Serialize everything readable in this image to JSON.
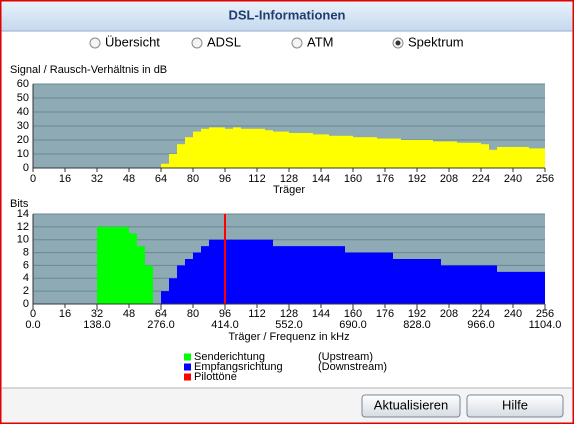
{
  "title": "DSL-Informationen",
  "radio_options": [
    {
      "label": "Übersicht",
      "selected": false
    },
    {
      "label": "ADSL",
      "selected": false
    },
    {
      "label": "ATM",
      "selected": false
    },
    {
      "label": "Spektrum",
      "selected": true
    }
  ],
  "chart_data": [
    {
      "type": "bar",
      "title": "Signal / Rausch-Verhältnis in dB",
      "x_label": "Träger",
      "xlim": [
        0,
        256
      ],
      "xticks": [
        0,
        16,
        32,
        48,
        64,
        80,
        96,
        112,
        128,
        144,
        160,
        176,
        192,
        208,
        224,
        240,
        256
      ],
      "ylim": [
        0,
        60
      ],
      "yticks": [
        0,
        10,
        20,
        30,
        40,
        50,
        60
      ],
      "grid": true,
      "series": [
        {
          "color": "#ffff00",
          "x": [
            64,
            68,
            72,
            76,
            80,
            84,
            88,
            92,
            96,
            100,
            104,
            108,
            112,
            116,
            120,
            124,
            128,
            132,
            136,
            140,
            144,
            148,
            152,
            156,
            160,
            164,
            168,
            172,
            176,
            180,
            184,
            188,
            192,
            196,
            200,
            204,
            208,
            212,
            216,
            220,
            224,
            228,
            232,
            236,
            240,
            244,
            248,
            252
          ],
          "values": [
            3,
            10,
            17,
            22,
            26,
            28,
            29,
            29,
            28,
            29,
            28,
            28,
            28,
            27,
            26,
            26,
            25,
            25,
            25,
            24,
            24,
            23,
            23,
            23,
            22,
            22,
            22,
            21,
            21,
            21,
            20,
            20,
            20,
            20,
            19,
            19,
            19,
            18,
            18,
            18,
            17,
            13,
            15,
            15,
            15,
            15,
            14,
            14
          ]
        }
      ]
    },
    {
      "type": "bar",
      "title": "Bits",
      "x_label": "Träger / Frequenz in kHz",
      "xlim": [
        0,
        256
      ],
      "xticks": [
        0,
        16,
        32,
        48,
        64,
        80,
        96,
        112,
        128,
        144,
        160,
        176,
        192,
        208,
        224,
        240,
        256
      ],
      "x2lim": [
        0,
        1104
      ],
      "x2ticks": [
        {
          "value": 0,
          "label": "0.0"
        },
        {
          "value": 138,
          "label": "138.0"
        },
        {
          "value": 276,
          "label": "276.0"
        },
        {
          "value": 414,
          "label": "414.0"
        },
        {
          "value": 552,
          "label": "552.0"
        },
        {
          "value": 690,
          "label": "690.0"
        },
        {
          "value": 828,
          "label": "828.0"
        },
        {
          "value": 966,
          "label": "966.0"
        },
        {
          "value": 1104,
          "label": "1104.0"
        }
      ],
      "ylim": [
        0,
        14
      ],
      "yticks": [
        0,
        2,
        4,
        6,
        8,
        10,
        12,
        14
      ],
      "grid": true,
      "series": [
        {
          "name": "Senderichtung",
          "legend_detail": "(Upstream)",
          "color": "#00ff00",
          "x": [
            32,
            36,
            40,
            44,
            48,
            52,
            56
          ],
          "values": [
            12,
            12,
            12,
            12,
            11,
            9,
            6
          ]
        },
        {
          "name": "Empfangsrichtung",
          "legend_detail": "(Downstream)",
          "color": "#0000ff",
          "x": [
            64,
            68,
            72,
            76,
            80,
            84,
            88,
            92,
            96,
            100,
            104,
            108,
            112,
            116,
            120,
            124,
            128,
            132,
            136,
            140,
            144,
            148,
            152,
            156,
            160,
            164,
            168,
            172,
            176,
            180,
            184,
            188,
            192,
            196,
            200,
            204,
            208,
            212,
            216,
            220,
            224,
            228,
            232,
            236,
            240,
            244,
            248,
            252
          ],
          "values": [
            2,
            4,
            6,
            7,
            8,
            9,
            10,
            10,
            10,
            10,
            10,
            10,
            10,
            10,
            9,
            9,
            9,
            9,
            9,
            9,
            9,
            9,
            9,
            8,
            8,
            8,
            8,
            8,
            8,
            7,
            7,
            7,
            7,
            7,
            7,
            6,
            6,
            6,
            6,
            6,
            6,
            6,
            5,
            5,
            5,
            5,
            5,
            5
          ]
        },
        {
          "name": "Pilottöne",
          "color": "#ff0000",
          "x": [
            96
          ],
          "values": [
            14
          ]
        }
      ]
    }
  ],
  "buttons": [
    "Aktualisieren",
    "Hilfe"
  ]
}
